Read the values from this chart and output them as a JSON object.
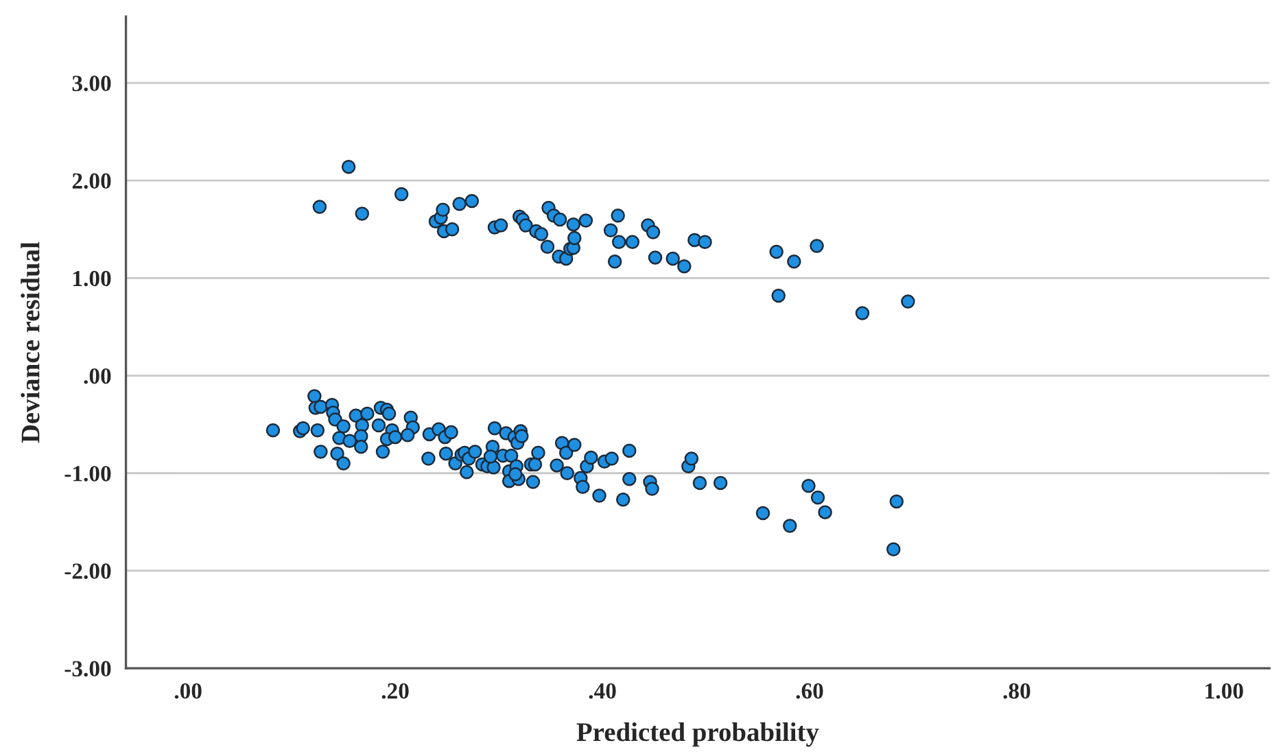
{
  "chart_data": {
    "type": "scatter",
    "xlabel": "Predicted probability",
    "ylabel": "Deviance residual",
    "xlim": [
      -0.06,
      1.044
    ],
    "ylim": [
      -3,
      3.68
    ],
    "xticks": [
      {
        "value": 0,
        "label": ".00"
      },
      {
        "value": 0.2,
        "label": ".20"
      },
      {
        "value": 0.4,
        "label": ".40"
      },
      {
        "value": 0.6,
        "label": ".60"
      },
      {
        "value": 0.8,
        "label": ".80"
      },
      {
        "value": 1,
        "label": "1.00"
      }
    ],
    "yticks": [
      {
        "value": -3,
        "label": "-3.00"
      },
      {
        "value": -2,
        "label": "-2.00"
      },
      {
        "value": -1,
        "label": "-1.00"
      },
      {
        "value": 0,
        "label": ".00"
      },
      {
        "value": 1,
        "label": "1.00"
      },
      {
        "value": 2,
        "label": "2.00"
      },
      {
        "value": 3,
        "label": "3.00"
      }
    ],
    "grid": "y",
    "marker": "circle",
    "series": [
      {
        "color": "#1f8fe0",
        "x": [
          0.127,
          0.155,
          0.168,
          0.206,
          0.239,
          0.244,
          0.246,
          0.247,
          0.255,
          0.262,
          0.274,
          0.296,
          0.302,
          0.32,
          0.323,
          0.326,
          0.336,
          0.341,
          0.347,
          0.348,
          0.353,
          0.359,
          0.358,
          0.365,
          0.369,
          0.372,
          0.373,
          0.372,
          0.384,
          0.408,
          0.415,
          0.416,
          0.412,
          0.429,
          0.444,
          0.449,
          0.451,
          0.468,
          0.479,
          0.489,
          0.499,
          0.568,
          0.585,
          0.607,
          0.57,
          0.651,
          0.695,
          0.082,
          0.108,
          0.111,
          0.122,
          0.123,
          0.128,
          0.125,
          0.128,
          0.139,
          0.14,
          0.142,
          0.15,
          0.146,
          0.144,
          0.15,
          0.156,
          0.162,
          0.168,
          0.167,
          0.167,
          0.173,
          0.184,
          0.186,
          0.192,
          0.194,
          0.197,
          0.192,
          0.2,
          0.188,
          0.215,
          0.217,
          0.212,
          0.233,
          0.242,
          0.248,
          0.254,
          0.232,
          0.249,
          0.258,
          0.264,
          0.267,
          0.271,
          0.269,
          0.277,
          0.284,
          0.289,
          0.295,
          0.294,
          0.292,
          0.296,
          0.304,
          0.307,
          0.312,
          0.31,
          0.31,
          0.315,
          0.318,
          0.321,
          0.322,
          0.317,
          0.319,
          0.316,
          0.331,
          0.335,
          0.338,
          0.333,
          0.356,
          0.366,
          0.361,
          0.365,
          0.373,
          0.379,
          0.381,
          0.385,
          0.389,
          0.397,
          0.402,
          0.409,
          0.42,
          0.426,
          0.426,
          0.446,
          0.448,
          0.483,
          0.486,
          0.494,
          0.514,
          0.555,
          0.581,
          0.599,
          0.608,
          0.615,
          0.684,
          0.681
        ],
        "values": [
          1.73,
          2.14,
          1.66,
          1.86,
          1.58,
          1.62,
          1.7,
          1.48,
          1.5,
          1.76,
          1.79,
          1.52,
          1.54,
          1.63,
          1.6,
          1.54,
          1.48,
          1.45,
          1.32,
          1.72,
          1.64,
          1.6,
          1.22,
          1.2,
          1.3,
          1.31,
          1.41,
          1.55,
          1.59,
          1.49,
          1.64,
          1.37,
          1.17,
          1.37,
          1.54,
          1.47,
          1.21,
          1.2,
          1.12,
          1.39,
          1.37,
          1.27,
          1.17,
          1.33,
          0.82,
          0.64,
          0.76,
          -0.56,
          -0.57,
          -0.54,
          -0.21,
          -0.33,
          -0.32,
          -0.56,
          -0.78,
          -0.3,
          -0.38,
          -0.45,
          -0.52,
          -0.64,
          -0.8,
          -0.9,
          -0.67,
          -0.41,
          -0.51,
          -0.62,
          -0.73,
          -0.39,
          -0.51,
          -0.33,
          -0.35,
          -0.39,
          -0.56,
          -0.65,
          -0.63,
          -0.78,
          -0.43,
          -0.53,
          -0.61,
          -0.6,
          -0.55,
          -0.63,
          -0.58,
          -0.85,
          -0.8,
          -0.9,
          -0.81,
          -0.79,
          -0.85,
          -0.99,
          -0.78,
          -0.91,
          -0.93,
          -0.94,
          -0.73,
          -0.83,
          -0.54,
          -0.82,
          -0.59,
          -0.82,
          -0.98,
          -1.08,
          -0.63,
          -0.69,
          -0.57,
          -0.62,
          -0.93,
          -1.06,
          -1.01,
          -0.91,
          -0.91,
          -0.79,
          -1.09,
          -0.92,
          -1.0,
          -0.69,
          -0.79,
          -0.71,
          -1.05,
          -1.14,
          -0.93,
          -0.84,
          -1.23,
          -0.88,
          -0.85,
          -1.27,
          -0.77,
          -1.06,
          -1.09,
          -1.16,
          -0.93,
          -0.85,
          -1.1,
          -1.1,
          -1.41,
          -1.54,
          -1.13,
          -1.25,
          -1.4,
          -1.29,
          -1.78
        ]
      }
    ]
  }
}
